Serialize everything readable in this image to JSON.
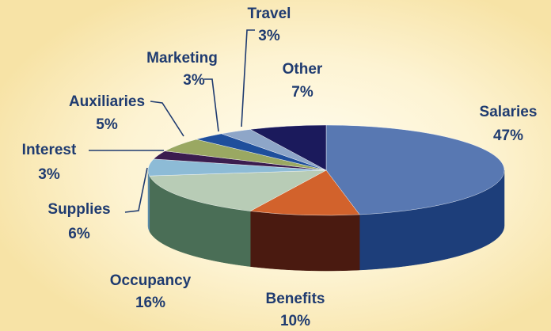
{
  "chart_data": {
    "type": "pie",
    "categories": [
      "Salaries",
      "Benefits",
      "Occupancy",
      "Supplies",
      "Interest",
      "Auxiliaries",
      "Marketing",
      "Travel",
      "Other"
    ],
    "values": [
      47,
      10,
      16,
      6,
      3,
      5,
      3,
      3,
      7
    ],
    "value_labels": [
      "47%",
      "10%",
      "16%",
      "6%",
      "3%",
      "5%",
      "3%",
      "3%",
      "7%"
    ],
    "colors": [
      "#5878b2",
      "#d2622c",
      "#b8ccb6",
      "#8dbbd6",
      "#3b1d4f",
      "#9aa862",
      "#1f4f9c",
      "#8ea6c8",
      "#1b1a5c"
    ],
    "side_colors": [
      "#1d3e7a",
      "#4a1a10",
      "#4a6e56",
      "#5a8aa8",
      "#2a1238",
      "#6a7640",
      "#17386e",
      "#62789a",
      "#111040"
    ]
  }
}
